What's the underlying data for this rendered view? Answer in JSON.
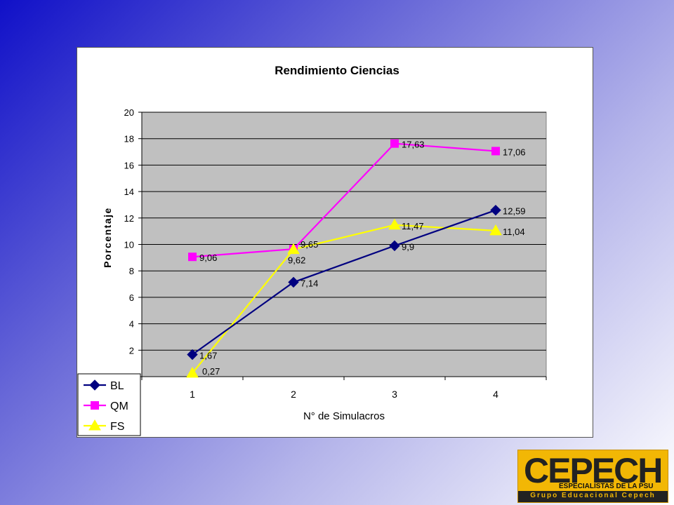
{
  "chart_data": {
    "type": "line",
    "title": "Rendimiento Ciencias",
    "xlabel": "N° de Simulacros",
    "ylabel": "Porcentaje",
    "categories": [
      "1",
      "2",
      "3",
      "4"
    ],
    "ylim": [
      0,
      20
    ],
    "yticks": [
      0,
      2,
      4,
      6,
      8,
      10,
      12,
      14,
      16,
      18,
      20
    ],
    "grid": true,
    "legend_position": "bottom-left",
    "series": [
      {
        "name": "BL",
        "values": [
          1.67,
          7.14,
          9.9,
          12.59
        ],
        "labels": [
          "1,67",
          "7,14",
          "9,9",
          "12,59"
        ],
        "color": "#000080",
        "marker": "diamond"
      },
      {
        "name": "QM",
        "values": [
          9.06,
          9.65,
          17.63,
          17.06
        ],
        "labels": [
          "9,06",
          "9,65",
          "17,63",
          "17,06"
        ],
        "color": "#ff00ff",
        "marker": "square"
      },
      {
        "name": "FS",
        "values": [
          0.27,
          9.62,
          11.47,
          11.04
        ],
        "labels": [
          "0,27",
          "9,62",
          "11,47",
          "11,04"
        ],
        "color": "#ffff00",
        "marker": "triangle"
      }
    ]
  },
  "logo": {
    "name": "CEPECH",
    "tagline": "ESPECIALISTAS DE LA PSU",
    "subtitle": "Grupo Educacional Cepech"
  }
}
